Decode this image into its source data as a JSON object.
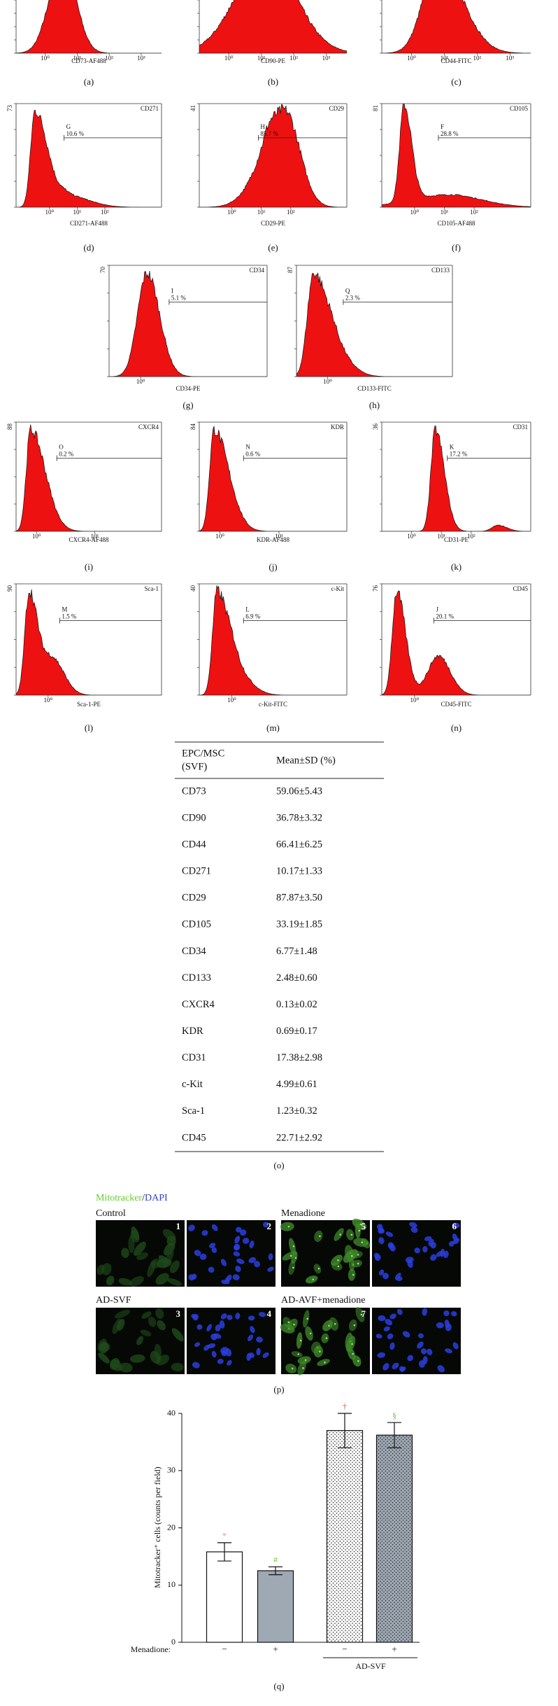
{
  "histograms": [
    {
      "panel": "(a)",
      "x_label": "CD73-AF488",
      "x_ticks": [
        "10⁰",
        "10¹",
        "10²",
        "10³"
      ]
    },
    {
      "panel": "(b)",
      "x_label": "CD90-PE",
      "x_ticks": [
        "10⁰",
        "10¹",
        "10²",
        "10³"
      ]
    },
    {
      "panel": "(c)",
      "x_label": "CD44-FITC",
      "x_ticks": [
        "10⁰",
        "10¹",
        "10²",
        "10³"
      ]
    },
    {
      "panel": "(d)",
      "y_max": 73,
      "marker": "CD271",
      "gate": "G",
      "percent": "10.6 %",
      "x_label": "CD271-AF488",
      "x_ticks": [
        "10⁰",
        "10¹",
        "10²"
      ]
    },
    {
      "panel": "(e)",
      "y_max": 41,
      "marker": "CD29",
      "gate": "H",
      "percent": "85.7 %",
      "x_label": "CD29-PE",
      "x_ticks": [
        "10⁰",
        "10¹",
        "10²"
      ]
    },
    {
      "panel": "(f)",
      "y_max": 81,
      "marker": "CD105",
      "gate": "F",
      "percent": "28.8 %",
      "x_label": "CD105-AF488",
      "x_ticks": [
        "10⁰",
        "10¹",
        "10²"
      ]
    },
    {
      "panel": "(g)",
      "y_max": 70,
      "marker": "CD34",
      "gate": "I",
      "percent": "5.1 %",
      "x_label": "CD34-PE",
      "x_ticks": [
        "10⁰"
      ]
    },
    {
      "panel": "(h)",
      "y_max": 87,
      "marker": "CD133",
      "gate": "Q",
      "percent": "2.3 %",
      "x_label": "CD133-FITC",
      "x_ticks": [
        "10⁰"
      ]
    },
    {
      "panel": "(i)",
      "y_max": 88,
      "marker": "CXCR4",
      "gate": "O",
      "percent": "0.2 %",
      "x_label": "CXCR4-AF488",
      "x_ticks": [
        "10⁰",
        "10¹"
      ]
    },
    {
      "panel": "(j)",
      "y_max": 84,
      "marker": "KDR",
      "gate": "N",
      "percent": "0.6 %",
      "x_label": "KDR-AF488",
      "x_ticks": [
        "10⁰",
        "10¹"
      ]
    },
    {
      "panel": "(k)",
      "y_max": 36,
      "marker": "CD31",
      "gate": "K",
      "percent": "17.2 %",
      "x_label": "CD31-PE",
      "x_ticks": [
        "10⁰",
        "10¹",
        "10²"
      ]
    },
    {
      "panel": "(l)",
      "y_max": 90,
      "marker": "Sca-1",
      "gate": "M",
      "percent": "1.5 %",
      "x_label": "Sca-1-PE",
      "x_ticks": [
        "10⁰"
      ]
    },
    {
      "panel": "(m)",
      "y_max": 40,
      "marker": "c-Kit",
      "gate": "L",
      "percent": "6.9 %",
      "x_label": "c-Kit-FITC",
      "x_ticks": [
        "10⁰"
      ]
    },
    {
      "panel": "(n)",
      "y_max": 76,
      "marker": "CD45",
      "gate": "J",
      "percent": "20.1 %",
      "x_label": "CD45-FITC",
      "x_ticks": [
        "10⁰"
      ]
    }
  ],
  "table": {
    "header": {
      "marker": [
        "EPC/MSC",
        "(SVF)"
      ],
      "value": "Mean±SD (%)"
    },
    "rows": [
      [
        "CD73",
        "59.06±5.43"
      ],
      [
        "CD90",
        "36.78±3.32"
      ],
      [
        "CD44",
        "66.41±6.25"
      ],
      [
        "CD271",
        "10.17±1.33"
      ],
      [
        "CD29",
        "87.87±3.50"
      ],
      [
        "CD105",
        "33.19±1.85"
      ],
      [
        "CD34",
        "6.77±1.48"
      ],
      [
        "CD133",
        "2.48±0.60"
      ],
      [
        "CXCR4",
        "0.13±0.02"
      ],
      [
        "KDR",
        "0.69±0.17"
      ],
      [
        "CD31",
        "17.38±2.98"
      ],
      [
        "c-Kit",
        "4.99±0.61"
      ],
      [
        "Sca-1",
        "1.23±0.32"
      ],
      [
        "CD45",
        "22.71±2.92"
      ]
    ],
    "caption": "(o)"
  },
  "fluorescence": {
    "title": [
      "Mitotracker",
      "/",
      "DAPI"
    ],
    "groups": [
      {
        "label": "Control",
        "numbers": [
          "1",
          "2"
        ]
      },
      {
        "label": "Menadione",
        "numbers": [
          "5",
          "6"
        ]
      },
      {
        "label": "AD-SVF",
        "numbers": [
          "3",
          "4"
        ]
      },
      {
        "label": "AD-AVF+menadione",
        "numbers": [
          "7"
        ]
      }
    ],
    "caption": "(p)"
  },
  "chart_data": {
    "type": "bar",
    "y_label": "Mitotracker⁺ cells (counts per field)",
    "categories": [
      null,
      null,
      null,
      null
    ],
    "values": [
      15.8,
      12.5,
      37.0,
      36.2
    ],
    "errors": [
      1.6,
      0.7,
      3.0,
      2.2
    ],
    "colors": [
      "#ffffff",
      "#9ea9b4",
      "#ffffff",
      "#9ea9b4"
    ],
    "dotted": [
      false,
      false,
      true,
      true
    ],
    "annotations": [
      "*",
      "#",
      "†",
      "§"
    ],
    "annotation_colors": [
      "#f08a8a",
      "#7cc24a",
      "#e04a4a",
      "#7cc24a"
    ],
    "menadione_label": "Menadione:",
    "menadione": [
      "−",
      "+",
      "−",
      "+"
    ],
    "group_label": "AD-SVF",
    "ylim": [
      0,
      40
    ],
    "yticks": [
      0,
      10,
      20,
      30,
      40
    ],
    "caption": "(q)"
  }
}
